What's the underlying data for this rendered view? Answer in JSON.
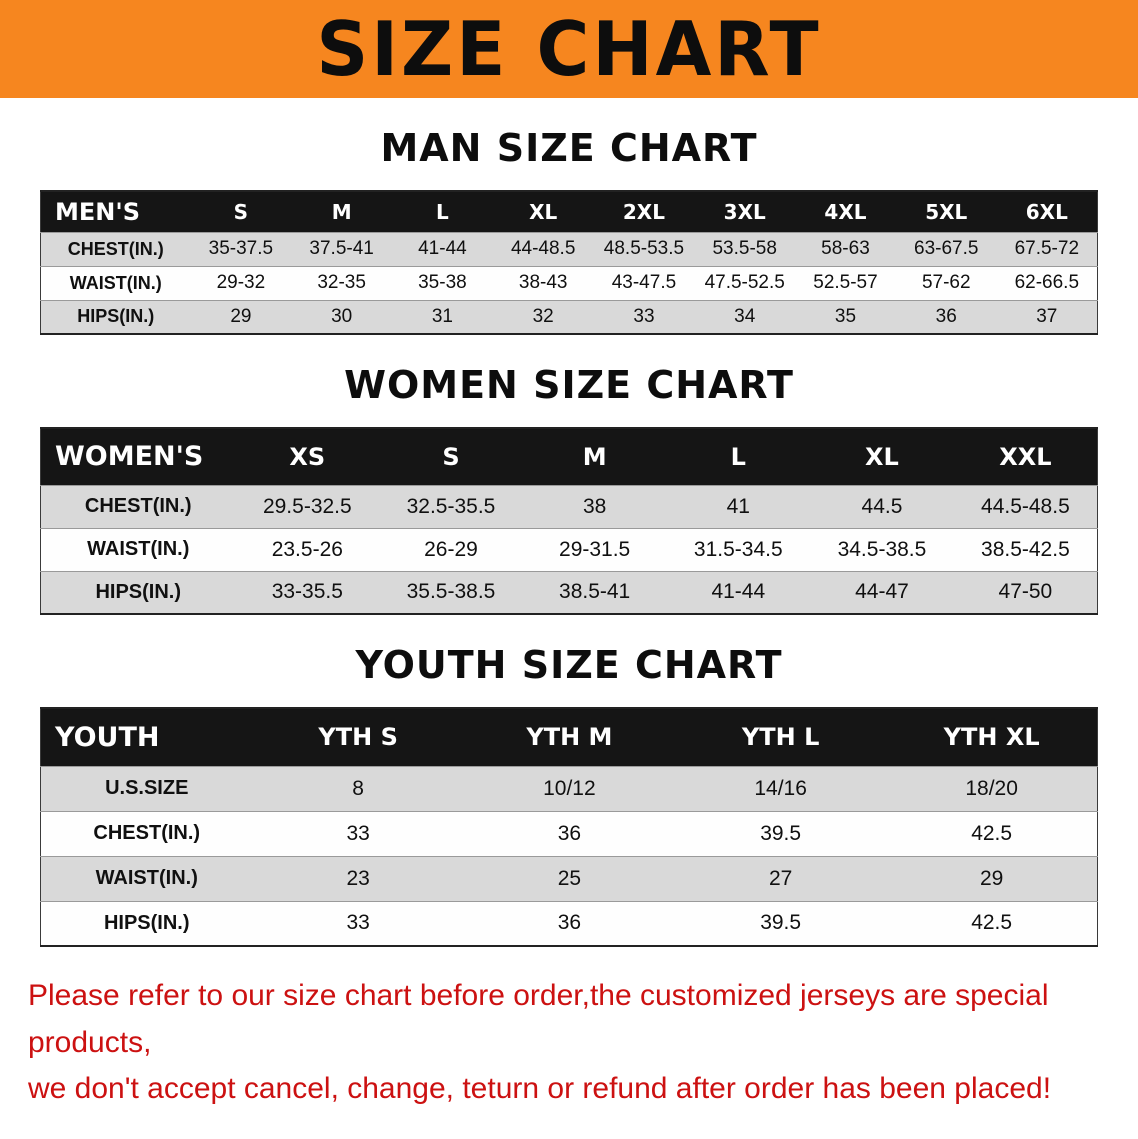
{
  "banner": {
    "title": "SIZE CHART"
  },
  "sections": [
    {
      "id": "men",
      "heading": "MAN SIZE CHART",
      "header": [
        "MEN'S",
        "S",
        "M",
        "L",
        "XL",
        "2XL",
        "3XL",
        "4XL",
        "5XL",
        "6XL"
      ],
      "rows": [
        [
          "CHEST(IN.)",
          "35-37.5",
          "37.5-41",
          "41-44",
          "44-48.5",
          "48.5-53.5",
          "53.5-58",
          "58-63",
          "63-67.5",
          "67.5-72"
        ],
        [
          "WAIST(IN.)",
          "29-32",
          "32-35",
          "35-38",
          "38-43",
          "43-47.5",
          "47.5-52.5",
          "52.5-57",
          "57-62",
          "62-66.5"
        ],
        [
          "HIPS(IN.)",
          "29",
          "30",
          "31",
          "32",
          "33",
          "34",
          "35",
          "36",
          "37"
        ]
      ]
    },
    {
      "id": "women",
      "heading": "WOMEN SIZE CHART",
      "header": [
        "WOMEN'S",
        "XS",
        "S",
        "M",
        "L",
        "XL",
        "XXL"
      ],
      "rows": [
        [
          "CHEST(IN.)",
          "29.5-32.5",
          "32.5-35.5",
          "38",
          "41",
          "44.5",
          "44.5-48.5"
        ],
        [
          "WAIST(IN.)",
          "23.5-26",
          "26-29",
          "29-31.5",
          "31.5-34.5",
          "34.5-38.5",
          "38.5-42.5"
        ],
        [
          "HIPS(IN.)",
          "33-35.5",
          "35.5-38.5",
          "38.5-41",
          "41-44",
          "44-47",
          "47-50"
        ]
      ]
    },
    {
      "id": "youth",
      "heading": "YOUTH SIZE CHART",
      "header": [
        "YOUTH",
        "YTH S",
        "YTH M",
        "YTH L",
        "YTH XL"
      ],
      "rows": [
        [
          "U.S.SIZE",
          "8",
          "10/12",
          "14/16",
          "18/20"
        ],
        [
          "CHEST(IN.)",
          "33",
          "36",
          "39.5",
          "42.5"
        ],
        [
          "WAIST(IN.)",
          "23",
          "25",
          "27",
          "29"
        ],
        [
          "HIPS(IN.)",
          "33",
          "36",
          "39.5",
          "42.5"
        ]
      ]
    }
  ],
  "disclaimer": {
    "line1": "Please refer to our size chart before order,the customized jerseys are special products,",
    "line2": "we don't accept cancel, change, teturn or refund after order has been placed!"
  },
  "colors": {
    "banner_bg": "#f6861f",
    "header_bg": "#151515",
    "row_alt_bg": "#d9d9d9",
    "disclaimer_color": "#cc1111"
  }
}
